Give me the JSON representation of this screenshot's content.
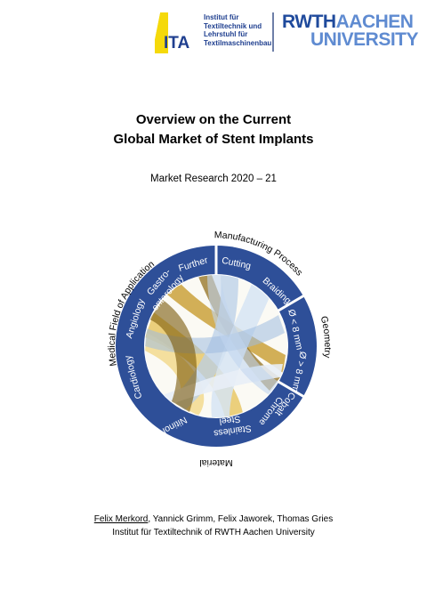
{
  "logos": {
    "ita": {
      "mark_text": "ITA",
      "lines": [
        "Institut für",
        "Textiltechnik und",
        "Lehrstuhl für",
        "Textilmaschinenbau"
      ]
    },
    "rwth": {
      "line1_part1": "RWTH",
      "line1_part2": "AACHEN",
      "line2": "UNIVERSITY"
    }
  },
  "title": {
    "line1": "Overview on the Current",
    "line2": "Global Market of Stent Implants"
  },
  "subtitle": "Market Research 2020 – 21",
  "diagram": {
    "categories": {
      "medical_field": "Medical  Field of Application",
      "manufacturing": "Manufacturing  Process",
      "geometry": "Geometry",
      "material": "Material"
    },
    "segments": {
      "further": "Further",
      "gastro_1": "Gastro-",
      "gastro_2": "enterology",
      "angiology": "Angiology",
      "cardiology": "Cardiology",
      "cutting": "Cutting",
      "braiding": "Braiding",
      "geom_small": "Ø < 8 mm",
      "geom_large": "Ø > 8 mm",
      "cobalt": "Cobalt",
      "chrome": "Chrome",
      "stainless": "Stainless",
      "steel": "Steel",
      "nitinol": "Nitinol"
    },
    "colors": {
      "ring": "#2e4f98",
      "gold_dark": "#a97d12",
      "gold_light": "#f4dc95",
      "blue_light": "#c5d9ef"
    }
  },
  "authors": {
    "first": "Felix Merkord",
    "rest": ", Yannick Grimm, Felix Jaworek, Thomas Gries"
  },
  "institute": "Institut für Textiltechnik of RWTH Aachen University"
}
